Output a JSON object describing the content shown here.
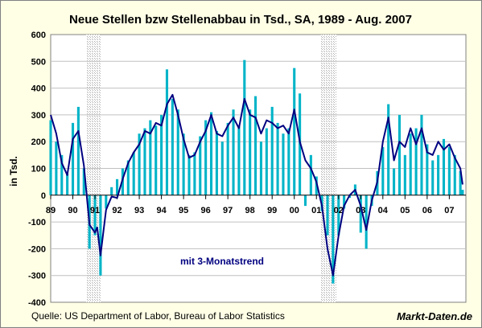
{
  "chart_data": {
    "type": "bar",
    "title": "Neue Stellen bzw Stellenabbau in Tsd., SA, 1989 - Aug. 2007",
    "ylabel": "in Tsd.",
    "ylim": [
      -400,
      600
    ],
    "yticks": [
      600,
      500,
      400,
      300,
      200,
      100,
      0,
      -100,
      -200,
      -300,
      -400
    ],
    "xlim": [
      1989.0,
      2007.75
    ],
    "xticks": [
      {
        "value": 1989.0,
        "label": "89"
      },
      {
        "value": 1990.0,
        "label": "90"
      },
      {
        "value": 1991.0,
        "label": "91"
      },
      {
        "value": 1992.0,
        "label": "92"
      },
      {
        "value": 1993.0,
        "label": "93"
      },
      {
        "value": 1994.0,
        "label": "94"
      },
      {
        "value": 1995.0,
        "label": "95"
      },
      {
        "value": 1996.0,
        "label": "96"
      },
      {
        "value": 1997.0,
        "label": "97"
      },
      {
        "value": 1998.0,
        "label": "98"
      },
      {
        "value": 1999.0,
        "label": "99"
      },
      {
        "value": 2000.0,
        "label": "00"
      },
      {
        "value": 2001.0,
        "label": "01"
      },
      {
        "value": 2002.0,
        "label": "02"
      },
      {
        "value": 2003.0,
        "label": "03"
      },
      {
        "value": 2004.0,
        "label": "04"
      },
      {
        "value": 2005.0,
        "label": "05"
      },
      {
        "value": 2006.0,
        "label": "06"
      },
      {
        "value": 2007.0,
        "label": "07"
      }
    ],
    "recessions": [
      [
        1990.6,
        1991.25
      ],
      [
        2001.2,
        2001.9
      ]
    ],
    "grid": true,
    "annotation": "mit 3-Monatstrend",
    "source": "Quelle: US Department of Labor, Bureau of Labor Statistics",
    "brand": "Markt-Daten.de",
    "series": [
      {
        "type": "bar",
        "color": "#00b4c8",
        "values": [
          {
            "x": 1989.0,
            "y": 280
          },
          {
            "x": 1989.25,
            "y": 200
          },
          {
            "x": 1989.5,
            "y": 150
          },
          {
            "x": 1989.75,
            "y": 80
          },
          {
            "x": 1990.0,
            "y": 270
          },
          {
            "x": 1990.25,
            "y": 330
          },
          {
            "x": 1990.5,
            "y": 100
          },
          {
            "x": 1990.75,
            "y": -200
          },
          {
            "x": 1991.0,
            "y": -150
          },
          {
            "x": 1991.25,
            "y": -300
          },
          {
            "x": 1991.5,
            "y": -50
          },
          {
            "x": 1991.75,
            "y": 30
          },
          {
            "x": 1992.0,
            "y": 60
          },
          {
            "x": 1992.25,
            "y": 100
          },
          {
            "x": 1992.5,
            "y": 130
          },
          {
            "x": 1992.75,
            "y": 160
          },
          {
            "x": 1993.0,
            "y": 230
          },
          {
            "x": 1993.25,
            "y": 250
          },
          {
            "x": 1993.5,
            "y": 280
          },
          {
            "x": 1993.75,
            "y": 260
          },
          {
            "x": 1994.0,
            "y": 300
          },
          {
            "x": 1994.25,
            "y": 470
          },
          {
            "x": 1994.5,
            "y": 360
          },
          {
            "x": 1994.75,
            "y": 320
          },
          {
            "x": 1995.0,
            "y": 230
          },
          {
            "x": 1995.25,
            "y": 150
          },
          {
            "x": 1995.5,
            "y": 160
          },
          {
            "x": 1995.75,
            "y": 220
          },
          {
            "x": 1996.0,
            "y": 280
          },
          {
            "x": 1996.25,
            "y": 310
          },
          {
            "x": 1996.5,
            "y": 240
          },
          {
            "x": 1996.75,
            "y": 200
          },
          {
            "x": 1997.0,
            "y": 270
          },
          {
            "x": 1997.25,
            "y": 320
          },
          {
            "x": 1997.5,
            "y": 260
          },
          {
            "x": 1997.75,
            "y": 505
          },
          {
            "x": 1998.0,
            "y": 320
          },
          {
            "x": 1998.25,
            "y": 370
          },
          {
            "x": 1998.5,
            "y": 200
          },
          {
            "x": 1998.75,
            "y": 250
          },
          {
            "x": 1999.0,
            "y": 330
          },
          {
            "x": 1999.25,
            "y": 270
          },
          {
            "x": 1999.5,
            "y": 230
          },
          {
            "x": 1999.75,
            "y": 250
          },
          {
            "x": 2000.0,
            "y": 475
          },
          {
            "x": 2000.25,
            "y": 380
          },
          {
            "x": 2000.5,
            "y": -40
          },
          {
            "x": 2000.75,
            "y": 150
          },
          {
            "x": 2001.0,
            "y": 70
          },
          {
            "x": 2001.25,
            "y": -60
          },
          {
            "x": 2001.5,
            "y": -150
          },
          {
            "x": 2001.75,
            "y": -330
          },
          {
            "x": 2002.0,
            "y": -150
          },
          {
            "x": 2002.25,
            "y": -50
          },
          {
            "x": 2002.5,
            "y": -10
          },
          {
            "x": 2002.75,
            "y": 40
          },
          {
            "x": 2003.0,
            "y": -140
          },
          {
            "x": 2003.25,
            "y": -200
          },
          {
            "x": 2003.5,
            "y": -40
          },
          {
            "x": 2003.75,
            "y": 90
          },
          {
            "x": 2004.0,
            "y": 180
          },
          {
            "x": 2004.25,
            "y": 340
          },
          {
            "x": 2004.5,
            "y": 100
          },
          {
            "x": 2004.75,
            "y": 300
          },
          {
            "x": 2005.0,
            "y": 150
          },
          {
            "x": 2005.25,
            "y": 230
          },
          {
            "x": 2005.5,
            "y": 250
          },
          {
            "x": 2005.75,
            "y": 300
          },
          {
            "x": 2006.0,
            "y": 190
          },
          {
            "x": 2006.25,
            "y": 130
          },
          {
            "x": 2006.5,
            "y": 150
          },
          {
            "x": 2006.75,
            "y": 210
          },
          {
            "x": 2007.0,
            "y": 180
          },
          {
            "x": 2007.25,
            "y": 150
          },
          {
            "x": 2007.5,
            "y": 90
          },
          {
            "x": 2007.6,
            "y": 20
          }
        ]
      },
      {
        "type": "line",
        "name": "3-Monatstrend",
        "color": "#000080",
        "values": [
          {
            "x": 1989.0,
            "y": 300
          },
          {
            "x": 1989.25,
            "y": 230
          },
          {
            "x": 1989.5,
            "y": 120
          },
          {
            "x": 1989.75,
            "y": 75
          },
          {
            "x": 1990.0,
            "y": 210
          },
          {
            "x": 1990.25,
            "y": 240
          },
          {
            "x": 1990.5,
            "y": 110
          },
          {
            "x": 1990.75,
            "y": -110
          },
          {
            "x": 1991.0,
            "y": -140
          },
          {
            "x": 1991.1,
            "y": -120
          },
          {
            "x": 1991.25,
            "y": -225
          },
          {
            "x": 1991.5,
            "y": -55
          },
          {
            "x": 1991.75,
            "y": -5
          },
          {
            "x": 1992.0,
            "y": -10
          },
          {
            "x": 1992.25,
            "y": 60
          },
          {
            "x": 1992.5,
            "y": 120
          },
          {
            "x": 1992.75,
            "y": 160
          },
          {
            "x": 1993.0,
            "y": 190
          },
          {
            "x": 1993.25,
            "y": 240
          },
          {
            "x": 1993.5,
            "y": 230
          },
          {
            "x": 1993.75,
            "y": 270
          },
          {
            "x": 1994.0,
            "y": 260
          },
          {
            "x": 1994.25,
            "y": 340
          },
          {
            "x": 1994.5,
            "y": 375
          },
          {
            "x": 1994.75,
            "y": 300
          },
          {
            "x": 1995.0,
            "y": 210
          },
          {
            "x": 1995.25,
            "y": 140
          },
          {
            "x": 1995.5,
            "y": 150
          },
          {
            "x": 1995.75,
            "y": 200
          },
          {
            "x": 1996.0,
            "y": 240
          },
          {
            "x": 1996.25,
            "y": 300
          },
          {
            "x": 1996.5,
            "y": 230
          },
          {
            "x": 1996.75,
            "y": 220
          },
          {
            "x": 1997.0,
            "y": 260
          },
          {
            "x": 1997.25,
            "y": 290
          },
          {
            "x": 1997.5,
            "y": 250
          },
          {
            "x": 1997.75,
            "y": 360
          },
          {
            "x": 1998.0,
            "y": 300
          },
          {
            "x": 1998.25,
            "y": 290
          },
          {
            "x": 1998.5,
            "y": 230
          },
          {
            "x": 1998.75,
            "y": 280
          },
          {
            "x": 1999.0,
            "y": 270
          },
          {
            "x": 1999.25,
            "y": 250
          },
          {
            "x": 1999.5,
            "y": 260
          },
          {
            "x": 1999.75,
            "y": 230
          },
          {
            "x": 2000.0,
            "y": 320
          },
          {
            "x": 2000.25,
            "y": 200
          },
          {
            "x": 2000.5,
            "y": 130
          },
          {
            "x": 2000.75,
            "y": 100
          },
          {
            "x": 2001.0,
            "y": 50
          },
          {
            "x": 2001.25,
            "y": -40
          },
          {
            "x": 2001.5,
            "y": -200
          },
          {
            "x": 2001.75,
            "y": -300
          },
          {
            "x": 2002.0,
            "y": -150
          },
          {
            "x": 2002.25,
            "y": -40
          },
          {
            "x": 2002.5,
            "y": 0
          },
          {
            "x": 2002.75,
            "y": 20
          },
          {
            "x": 2003.0,
            "y": -40
          },
          {
            "x": 2003.25,
            "y": -130
          },
          {
            "x": 2003.5,
            "y": -20
          },
          {
            "x": 2003.75,
            "y": 50
          },
          {
            "x": 2004.0,
            "y": 200
          },
          {
            "x": 2004.25,
            "y": 290
          },
          {
            "x": 2004.5,
            "y": 130
          },
          {
            "x": 2004.75,
            "y": 200
          },
          {
            "x": 2005.0,
            "y": 180
          },
          {
            "x": 2005.25,
            "y": 250
          },
          {
            "x": 2005.5,
            "y": 190
          },
          {
            "x": 2005.75,
            "y": 250
          },
          {
            "x": 2006.0,
            "y": 160
          },
          {
            "x": 2006.25,
            "y": 150
          },
          {
            "x": 2006.5,
            "y": 200
          },
          {
            "x": 2006.75,
            "y": 170
          },
          {
            "x": 2007.0,
            "y": 190
          },
          {
            "x": 2007.25,
            "y": 140
          },
          {
            "x": 2007.5,
            "y": 100
          },
          {
            "x": 2007.6,
            "y": 40
          }
        ]
      }
    ]
  }
}
